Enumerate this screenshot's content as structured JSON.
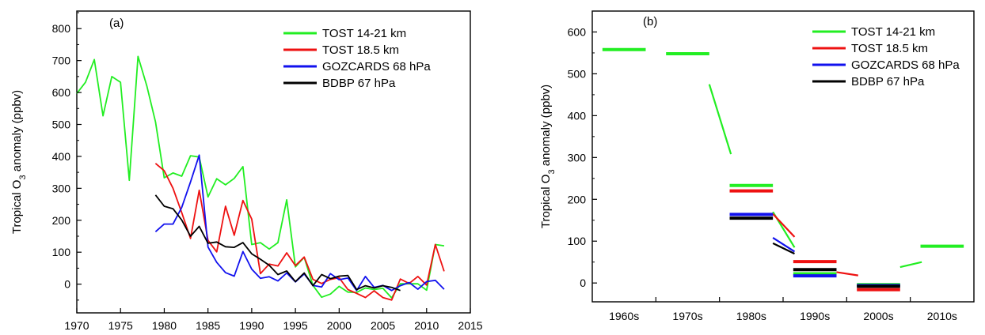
{
  "panels": [
    {
      "label": "(a)"
    },
    {
      "label": "(b)"
    }
  ],
  "chart_data": [
    {
      "type": "line",
      "panel_label": "(a)",
      "xlabel": "",
      "ylabel": "Tropical O3 anomaly (ppbv)",
      "ylabel_main": "Tropical O",
      "ylabel_sub": "3",
      "ylabel_rest": " anomaly (ppbv)",
      "xlim": [
        1970,
        2015
      ],
      "ylim": [
        -90,
        855
      ],
      "xticks": [
        1970,
        1975,
        1980,
        1985,
        1990,
        1995,
        2000,
        2005,
        2010,
        2015
      ],
      "yticks": [
        0,
        100,
        200,
        300,
        400,
        500,
        600,
        700,
        800
      ],
      "legend_position": "top-right",
      "grid": false,
      "series": [
        {
          "name": "TOST 14-21 km",
          "color": "#22ee22",
          "x": [
            1970,
            1971,
            1972,
            1973,
            1974,
            1975,
            1976,
            1977,
            1978,
            1979,
            1980,
            1981,
            1982,
            1983,
            1984,
            1985,
            1986,
            1987,
            1988,
            1989,
            1990,
            1991,
            1992,
            1993,
            1994,
            1995,
            1996,
            1997,
            1998,
            1999,
            2000,
            2001,
            2002,
            2003,
            2004,
            2005,
            2006,
            2007,
            2008,
            2009,
            2010,
            2011,
            2012
          ],
          "y": [
            597,
            632,
            703,
            527,
            650,
            632,
            325,
            713,
            621,
            508,
            333,
            348,
            338,
            402,
            398,
            273,
            330,
            311,
            331,
            368,
            124,
            130,
            110,
            130,
            264,
            54,
            84,
            -4,
            -41,
            -31,
            -7,
            -25,
            -26,
            -12,
            -17,
            -13,
            -43,
            1,
            1,
            1,
            -19,
            124,
            120
          ]
        },
        {
          "name": "TOST 18.5 km",
          "color": "#ee1111",
          "x": [
            1979,
            1980,
            1981,
            1982,
            1983,
            1984,
            1985,
            1986,
            1987,
            1988,
            1989,
            1990,
            1991,
            1992,
            1993,
            1994,
            1995,
            1996,
            1997,
            1998,
            1999,
            2000,
            2001,
            2002,
            2003,
            2004,
            2005,
            2006,
            2007,
            2008,
            2009,
            2010,
            2011,
            2012
          ],
          "y": [
            378,
            355,
            300,
            224,
            143,
            294,
            137,
            101,
            244,
            153,
            262,
            204,
            33,
            63,
            57,
            98,
            58,
            85,
            15,
            2,
            15,
            20,
            -17,
            -29,
            -42,
            -21,
            -42,
            -50,
            16,
            2,
            24,
            -3,
            124,
            40
          ]
        },
        {
          "name": "GOZCARDS 68 hPa",
          "color": "#1111ee",
          "x": [
            1979,
            1980,
            1981,
            1982,
            1983,
            1984,
            1985,
            1986,
            1987,
            1988,
            1989,
            1990,
            1991,
            1992,
            1993,
            1994,
            1995,
            1996,
            1997,
            1998,
            1999,
            2000,
            2001,
            2002,
            2003,
            2004,
            2005,
            2006,
            2007,
            2008,
            2009,
            2010,
            2011,
            2012
          ],
          "y": [
            164,
            188,
            188,
            240,
            320,
            404,
            116,
            68,
            36,
            25,
            102,
            47,
            18,
            23,
            10,
            35,
            7,
            32,
            -4,
            -9,
            33,
            14,
            19,
            -20,
            24,
            -10,
            -4,
            -20,
            -5,
            5,
            -16,
            8,
            12,
            -16
          ]
        },
        {
          "name": "BDBP 67 hPa",
          "color": "#000000",
          "x": [
            1979,
            1980,
            1981,
            1982,
            1983,
            1984,
            1985,
            1986,
            1987,
            1988,
            1989,
            1990,
            1991,
            1992,
            1993,
            1994,
            1995,
            1996,
            1997,
            1998,
            1999,
            2000,
            2001,
            2002,
            2003,
            2004,
            2005,
            2006,
            2007
          ],
          "y": [
            279,
            244,
            236,
            201,
            150,
            181,
            128,
            132,
            117,
            115,
            130,
            95,
            78,
            59,
            30,
            41,
            8,
            35,
            -5,
            30,
            17,
            25,
            27,
            -17,
            -5,
            -12,
            -5,
            -10,
            -20
          ]
        }
      ]
    },
    {
      "type": "line",
      "panel_label": "(b)",
      "xlabel": "",
      "ylabel": "Tropical O3 anomaly (ppbv)",
      "ylabel_main": "Tropical O",
      "ylabel_sub": "3",
      "ylabel_rest": " anomaly (ppbv)",
      "categories": [
        "1960s",
        "1970s",
        "1980s",
        "1990s",
        "2000s",
        "2010s"
      ],
      "ylim": [
        -45,
        650
      ],
      "yticks": [
        0,
        100,
        200,
        300,
        400,
        500,
        600
      ],
      "legend_position": "top-right",
      "grid": false,
      "series": [
        {
          "name": "TOST 14-21 km",
          "color": "#22ee22",
          "levels": [
            {
              "decade": 0,
              "value": 558
            },
            {
              "decade": 1,
              "value": 548
            },
            {
              "decade": 2,
              "value": 233
            },
            {
              "decade": 3,
              "value": 22
            },
            {
              "decade": 4,
              "value": -4
            },
            {
              "decade": 5,
              "value": 88
            }
          ],
          "transitions": [
            {
              "from": 1,
              "y0": 475,
              "y1": 308
            },
            {
              "from": 2,
              "y0": 170,
              "y1": 85
            },
            {
              "from": 4,
              "y0": 38,
              "y1": 50
            }
          ]
        },
        {
          "name": "TOST 18.5 km",
          "color": "#ee1111",
          "levels": [
            {
              "decade": 2,
              "value": 220
            },
            {
              "decade": 3,
              "value": 51
            },
            {
              "decade": 4,
              "value": -16
            }
          ],
          "transitions": [
            {
              "from": 2,
              "y0": 165,
              "y1": 110
            },
            {
              "from": 3,
              "y0": 26,
              "y1": 18
            }
          ]
        },
        {
          "name": "GOZCARDS 68 hPa",
          "color": "#1111ee",
          "levels": [
            {
              "decade": 2,
              "value": 164
            },
            {
              "decade": 3,
              "value": 17
            },
            {
              "decade": 4,
              "value": -6
            }
          ],
          "transitions": [
            {
              "from": 2,
              "y0": 108,
              "y1": 75
            }
          ]
        },
        {
          "name": "BDBP 67 hPa",
          "color": "#000000",
          "levels": [
            {
              "decade": 2,
              "value": 155
            },
            {
              "decade": 3,
              "value": 32
            },
            {
              "decade": 4,
              "value": -8
            }
          ],
          "transitions": [
            {
              "from": 2,
              "y0": 95,
              "y1": 70
            }
          ]
        }
      ]
    }
  ]
}
